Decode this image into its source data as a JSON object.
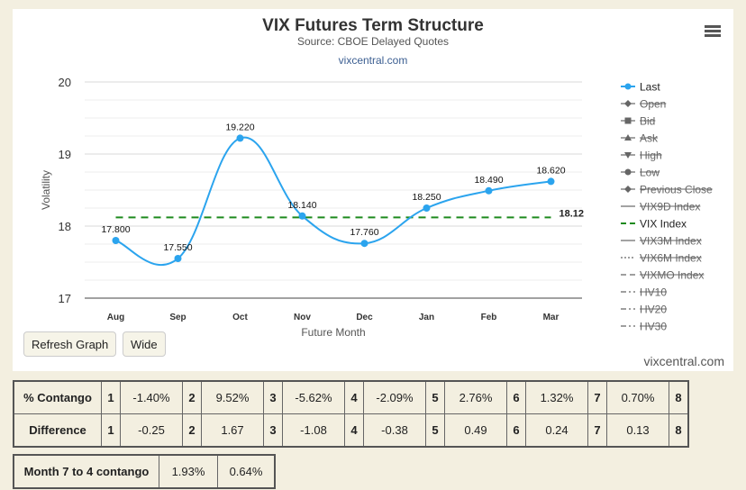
{
  "header": {
    "title": "VIX Futures Term Structure",
    "subtitle": "Source: CBOE Delayed Quotes",
    "link": "vixcentral.com"
  },
  "buttons": {
    "refresh": "Refresh Graph",
    "wide": "Wide"
  },
  "credit": "vixcentral.com",
  "chart_data": {
    "type": "line",
    "title": "VIX Futures Term Structure",
    "subtitle": "Source: CBOE Delayed Quotes",
    "xlabel": "Future Month",
    "ylabel": "Volatility",
    "categories": [
      "Aug",
      "Sep",
      "Oct",
      "Nov",
      "Dec",
      "Jan",
      "Feb",
      "Mar"
    ],
    "ylim": [
      17,
      20
    ],
    "yticks": [
      17,
      18,
      19,
      20
    ],
    "grid": true,
    "legend_position": "right",
    "series": [
      {
        "name": "Last",
        "values": [
          17.8,
          17.55,
          19.22,
          18.14,
          17.76,
          18.25,
          18.49,
          18.62
        ],
        "labels": [
          "17.800",
          "17.550",
          "19.220",
          "18.140",
          "17.760",
          "18.250",
          "18.490",
          "18.620"
        ],
        "color": "#2ba4ee"
      },
      {
        "name": "VIX Index",
        "value": 18.12,
        "label": "18.12",
        "color": "#1e8a1e",
        "dash": true
      }
    ],
    "legend": [
      {
        "name": "Last",
        "symbol": "circle",
        "disabled": false,
        "color": "#2ba4ee"
      },
      {
        "name": "Open",
        "symbol": "diamond",
        "disabled": true
      },
      {
        "name": "Bid",
        "symbol": "square",
        "disabled": true
      },
      {
        "name": "Ask",
        "symbol": "triangle",
        "disabled": true
      },
      {
        "name": "High",
        "symbol": "triangle-down",
        "disabled": true
      },
      {
        "name": "Low",
        "symbol": "circle",
        "disabled": true
      },
      {
        "name": "Previous Close",
        "symbol": "diamond",
        "disabled": true
      },
      {
        "name": "VIX9D Index",
        "symbol": "line",
        "disabled": true
      },
      {
        "name": "VIX Index",
        "symbol": "line-dash",
        "disabled": false,
        "color": "#1e8a1e"
      },
      {
        "name": "VIX3M Index",
        "symbol": "line",
        "disabled": true
      },
      {
        "name": "VIX6M Index",
        "symbol": "line-dot",
        "disabled": true
      },
      {
        "name": "VIXMO Index",
        "symbol": "line-dash",
        "disabled": true
      },
      {
        "name": "HV10",
        "symbol": "line-dashdot",
        "disabled": true
      },
      {
        "name": "HV20",
        "symbol": "line-dashdot",
        "disabled": true
      },
      {
        "name": "HV30",
        "symbol": "line-dashdot",
        "disabled": true
      }
    ]
  },
  "contango_table": {
    "rows": [
      {
        "label": "% Contango",
        "cells": [
          "1",
          "-1.40%",
          "2",
          "9.52%",
          "3",
          "-5.62%",
          "4",
          "-2.09%",
          "5",
          "2.76%",
          "6",
          "1.32%",
          "7",
          "0.70%",
          "8"
        ]
      },
      {
        "label": "Difference",
        "cells": [
          "1",
          "-0.25",
          "2",
          "1.67",
          "3",
          "-1.08",
          "4",
          "-0.38",
          "5",
          "0.49",
          "6",
          "0.24",
          "7",
          "0.13",
          "8"
        ]
      }
    ]
  },
  "month_table": {
    "label": "Month 7 to 4 contango",
    "values": [
      "1.93%",
      "0.64%"
    ]
  }
}
